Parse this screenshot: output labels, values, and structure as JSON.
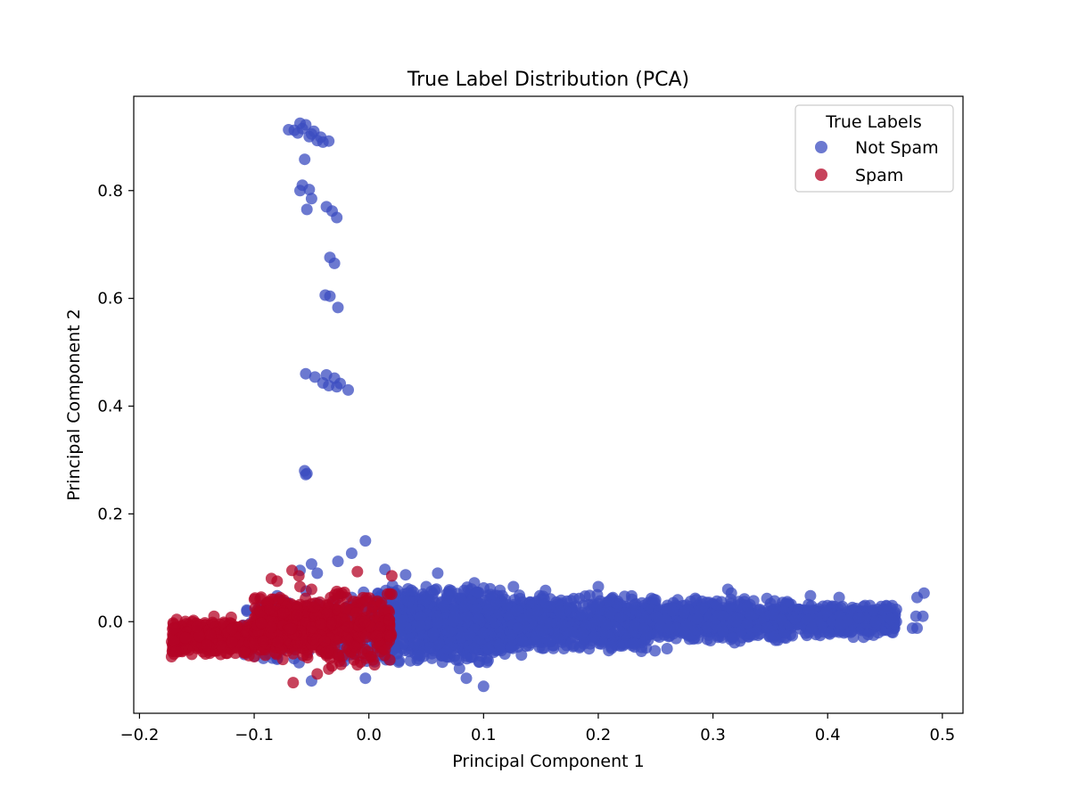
{
  "chart_data": {
    "type": "scatter",
    "title": "True Label Distribution (PCA)",
    "xlabel": "Principal Component 1",
    "ylabel": "Principal Component 2",
    "xlim": [
      -0.205,
      0.518
    ],
    "ylim": [
      -0.17,
      0.975
    ],
    "x_ticks": [
      -0.2,
      -0.1,
      0.0,
      0.1,
      0.2,
      0.3,
      0.4,
      0.5
    ],
    "x_tick_labels": [
      "−0.2",
      "−0.1",
      "0.0",
      "0.1",
      "0.2",
      "0.3",
      "0.4",
      "0.5"
    ],
    "y_ticks": [
      0.0,
      0.2,
      0.4,
      0.6,
      0.8
    ],
    "y_tick_labels": [
      "0.0",
      "0.2",
      "0.4",
      "0.6",
      "0.8"
    ],
    "grid": false,
    "legend": {
      "title": "True Labels",
      "placement": "top-right",
      "entries": [
        "Not Spam",
        "Spam"
      ]
    },
    "series": [
      {
        "name": "Not Spam",
        "color": "#3b4cc0",
        "opacity": 0.75,
        "points": [
          [
            -0.07,
            0.913
          ],
          [
            -0.065,
            0.912
          ],
          [
            -0.06,
            0.925
          ],
          [
            -0.055,
            0.922
          ],
          [
            -0.05,
            0.905
          ],
          [
            -0.058,
            0.915
          ],
          [
            -0.052,
            0.9
          ],
          [
            -0.045,
            0.893
          ],
          [
            -0.04,
            0.89
          ],
          [
            -0.035,
            0.892
          ],
          [
            -0.048,
            0.91
          ],
          [
            -0.062,
            0.907
          ],
          [
            -0.042,
            0.899
          ],
          [
            -0.056,
            0.858
          ],
          [
            -0.058,
            0.81
          ],
          [
            -0.06,
            0.8
          ],
          [
            -0.052,
            0.802
          ],
          [
            -0.05,
            0.785
          ],
          [
            -0.054,
            0.765
          ],
          [
            -0.037,
            0.77
          ],
          [
            -0.032,
            0.762
          ],
          [
            -0.028,
            0.75
          ],
          [
            -0.034,
            0.676
          ],
          [
            -0.03,
            0.665
          ],
          [
            -0.038,
            0.606
          ],
          [
            -0.034,
            0.604
          ],
          [
            -0.027,
            0.583
          ],
          [
            -0.055,
            0.46
          ],
          [
            -0.047,
            0.454
          ],
          [
            -0.037,
            0.458
          ],
          [
            -0.03,
            0.452
          ],
          [
            -0.04,
            0.443
          ],
          [
            -0.035,
            0.438
          ],
          [
            -0.028,
            0.436
          ],
          [
            -0.025,
            0.442
          ],
          [
            -0.018,
            0.43
          ],
          [
            -0.056,
            0.28
          ],
          [
            -0.055,
            0.273
          ],
          [
            -0.054,
            0.275
          ],
          [
            -0.003,
            0.15
          ],
          [
            -0.015,
            0.127
          ],
          [
            -0.027,
            0.112
          ],
          [
            -0.05,
            0.107
          ],
          [
            0.014,
            0.097
          ],
          [
            -0.045,
            0.09
          ],
          [
            -0.06,
            0.095
          ],
          [
            0.032,
            0.087
          ],
          [
            0.06,
            0.09
          ],
          [
            0.092,
            0.072
          ],
          [
            0.05,
            0.065
          ],
          [
            0.126,
            0.065
          ],
          [
            0.2,
            0.065
          ],
          [
            0.154,
            0.058
          ],
          [
            0.223,
            0.047
          ],
          [
            0.313,
            0.06
          ],
          [
            0.316,
            0.053
          ],
          [
            0.385,
            0.048
          ],
          [
            0.41,
            0.045
          ],
          [
            0.478,
            0.045
          ],
          [
            0.484,
            0.053
          ],
          [
            0.477,
            0.01
          ],
          [
            0.483,
            0.01
          ],
          [
            0.478,
            -0.012
          ],
          [
            0.474,
            -0.012
          ],
          [
            0.455,
            0.005
          ],
          [
            0.44,
            -0.025
          ],
          [
            0.42,
            -0.02
          ],
          [
            0.1,
            -0.12
          ],
          [
            0.085,
            -0.105
          ],
          [
            0.079,
            -0.087
          ],
          [
            0.096,
            -0.075
          ],
          [
            -0.003,
            -0.105
          ],
          [
            0.133,
            -0.062
          ],
          [
            -0.092,
            -0.068
          ],
          [
            -0.05,
            -0.11
          ],
          [
            0.17,
            -0.05
          ],
          [
            0.26,
            -0.05
          ],
          [
            0.055,
            -0.068
          ],
          [
            -0.08,
            0.048
          ]
        ],
        "clusters": [
          {
            "x": [
              -0.11,
              0.005
            ],
            "y": [
              -0.085,
              0.06
            ],
            "n": 220
          },
          {
            "x": [
              0.005,
              0.12
            ],
            "y": [
              -0.08,
              0.07
            ],
            "n": 900
          },
          {
            "x": [
              0.12,
              0.25
            ],
            "y": [
              -0.06,
              0.055
            ],
            "n": 700
          },
          {
            "x": [
              0.25,
              0.37
            ],
            "y": [
              -0.04,
              0.045
            ],
            "n": 550
          },
          {
            "x": [
              0.37,
              0.46
            ],
            "y": [
              -0.03,
              0.035
            ],
            "n": 350
          }
        ]
      },
      {
        "name": "Spam",
        "color": "#b40426",
        "opacity": 0.75,
        "points": [
          [
            -0.067,
            0.095
          ],
          [
            -0.061,
            0.085
          ],
          [
            -0.08,
            0.075
          ],
          [
            -0.085,
            0.08
          ],
          [
            -0.01,
            0.093
          ],
          [
            0.02,
            0.085
          ],
          [
            -0.066,
            -0.113
          ],
          [
            -0.045,
            -0.097
          ],
          [
            -0.035,
            -0.088
          ],
          [
            -0.172,
            -0.065
          ],
          [
            -0.17,
            -0.06
          ],
          [
            -0.168,
            -0.055
          ],
          [
            -0.16,
            -0.03
          ],
          [
            -0.15,
            -0.01
          ],
          [
            -0.135,
            0.01
          ],
          [
            -0.12,
            0.008
          ],
          [
            -0.01,
            -0.08
          ],
          [
            0.005,
            -0.08
          ],
          [
            -0.05,
            0.06
          ],
          [
            -0.06,
            0.065
          ],
          [
            -0.075,
            -0.07
          ],
          [
            -0.1,
            -0.065
          ]
        ],
        "clusters": [
          {
            "x": [
              -0.172,
              -0.1
            ],
            "y": [
              -0.065,
              0.005
            ],
            "n": 350
          },
          {
            "x": [
              -0.1,
              -0.05
            ],
            "y": [
              -0.075,
              0.055
            ],
            "n": 320
          },
          {
            "x": [
              -0.05,
              0.02
            ],
            "y": [
              -0.09,
              0.065
            ],
            "n": 300
          }
        ]
      }
    ]
  }
}
